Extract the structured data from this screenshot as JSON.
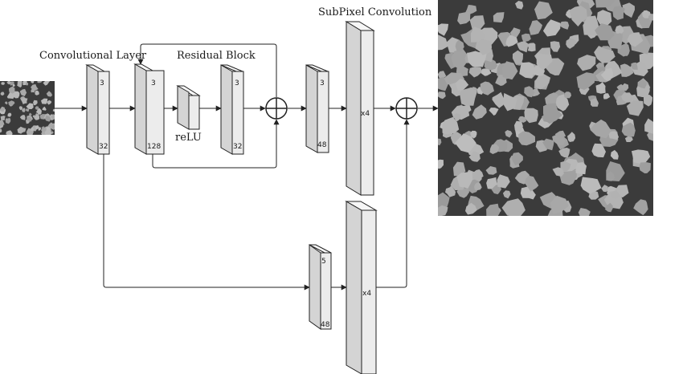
{
  "labels": {
    "conv_layer": "Convolutional Layer",
    "residual_block": "Residual Block",
    "subpixel": "SubPixel Convolution",
    "relu": "reLU"
  },
  "blocks": {
    "conv": {
      "top": "3",
      "bottom": "32"
    },
    "res1": {
      "top": "3",
      "bottom": "128"
    },
    "res2": {
      "top": "3",
      "bottom": "32"
    },
    "after": {
      "top": "3",
      "bottom": "48"
    },
    "sub_top": {
      "mid": "x4"
    },
    "skip": {
      "top": "5",
      "bottom": "48"
    },
    "sub_bottom": {
      "mid": "x4"
    }
  },
  "colors": {
    "micro_background": "#3b3b3b",
    "micro_grain": "#a9a9a9"
  },
  "icons": [
    "sum-node-icon",
    "arrowhead-icon"
  ]
}
